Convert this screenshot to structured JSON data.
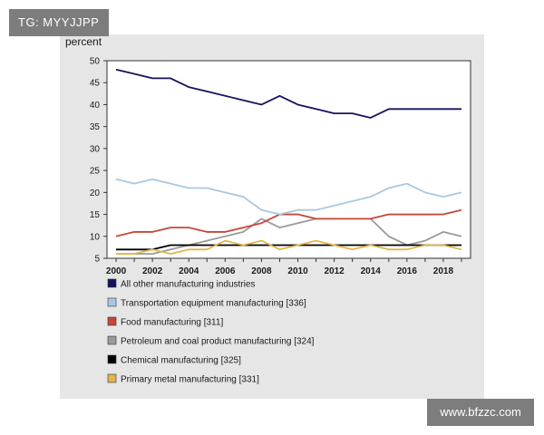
{
  "watermark": {
    "top_left": "TG: MYYJJPP",
    "bottom_right": "www.bfzzc.com"
  },
  "chart_data": {
    "type": "line",
    "ylabel": "percent",
    "xlabel": "",
    "ylim": [
      5,
      50
    ],
    "yticks": [
      5,
      10,
      15,
      20,
      25,
      30,
      35,
      40,
      45,
      50
    ],
    "xticks": [
      2000,
      2002,
      2004,
      2006,
      2008,
      2010,
      2012,
      2014,
      2016,
      2018
    ],
    "x": [
      2000,
      2001,
      2002,
      2003,
      2004,
      2005,
      2006,
      2007,
      2008,
      2009,
      2010,
      2011,
      2012,
      2013,
      2014,
      2015,
      2016,
      2017,
      2018,
      2019
    ],
    "legend_position": "bottom",
    "series": [
      {
        "name": "All other manufacturing industries",
        "color": "#15135e",
        "values": [
          48,
          47,
          46,
          46,
          44,
          43,
          42,
          41,
          40,
          42,
          40,
          39,
          38,
          38,
          37,
          39,
          39,
          39,
          39,
          39
        ]
      },
      {
        "name": "Transportation equipment manufacturing [336]",
        "color": "#a9c7e3",
        "values": [
          23,
          22,
          23,
          22,
          21,
          21,
          20,
          19,
          16,
          15,
          16,
          16,
          17,
          18,
          19,
          21,
          22,
          20,
          19,
          20
        ]
      },
      {
        "name": "Food manufacturing [311]",
        "color": "#c6473a",
        "values": [
          10,
          11,
          11,
          12,
          12,
          11,
          11,
          12,
          13,
          15,
          15,
          14,
          14,
          14,
          14,
          15,
          15,
          15,
          15,
          16
        ]
      },
      {
        "name": "Petroleum and coal product manufacturing [324]",
        "color": "#9a9a9a",
        "values": [
          6,
          6,
          6,
          7,
          8,
          9,
          10,
          11,
          14,
          12,
          13,
          14,
          14,
          14,
          14,
          10,
          8,
          9,
          11,
          10
        ]
      },
      {
        "name": "Chemical manufacturing [325]",
        "color": "#000000",
        "values": [
          7,
          7,
          7,
          8,
          8,
          8,
          8,
          8,
          8,
          8,
          8,
          8,
          8,
          8,
          8,
          8,
          8,
          8,
          8,
          8
        ]
      },
      {
        "name": "Primary metal manufacturing [331]",
        "color": "#e3b64b",
        "values": [
          6,
          6,
          7,
          6,
          7,
          7,
          9,
          8,
          9,
          7,
          8,
          9,
          8,
          7,
          8,
          7,
          7,
          8,
          8,
          7
        ]
      }
    ]
  }
}
